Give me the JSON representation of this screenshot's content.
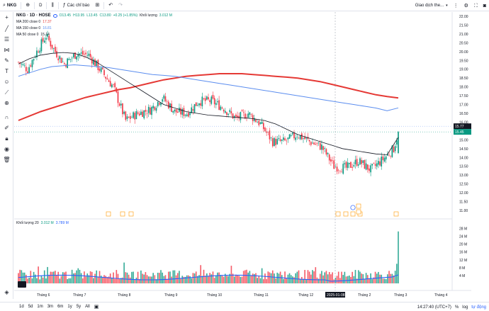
{
  "topbar": {
    "symbol": "NKG",
    "interval": "D",
    "indicators_label": "Các chỉ báo",
    "trading_label": "Giao dịch the..."
  },
  "legend": {
    "title": "NKG · 1D · HOSE",
    "o": "O13.45",
    "h": "H13.95",
    "l": "L13.45",
    "c": "C13.80",
    "change": "+0.25 (+1.85%)",
    "volume_label": "Khối lượng",
    "volume_value": "3.012 M",
    "ma_rows": [
      {
        "name": "MA 200 close 0",
        "value": "17.37",
        "color": "#e53935"
      },
      {
        "name": "MA 150 close 0",
        "value": "16.81",
        "color": "#5b8def"
      },
      {
        "name": "MA 50 close 0",
        "value": "15.14",
        "color": "#131722"
      }
    ]
  },
  "volume_legend": {
    "name": "Khối lượng 20",
    "v1": "3.012 M",
    "v2": "3.789 M"
  },
  "price_axis": {
    "labels": [
      "22.00",
      "21.50",
      "21.00",
      "20.50",
      "20.00",
      "19.50",
      "19.00",
      "18.50",
      "18.00",
      "17.50",
      "17.00",
      "16.50",
      "16.00",
      "15.50",
      "15.00",
      "14.50",
      "14.00",
      "13.50",
      "13.00",
      "12.50",
      "12.00",
      "11.50",
      "11.00"
    ],
    "last_price_badge": "15.45",
    "ma_badge": "15.77"
  },
  "volume_axis": {
    "labels": [
      "28 M",
      "24 M",
      "20 M",
      "16 M",
      "12 M",
      "8 M",
      "4 M"
    ]
  },
  "time_axis": {
    "labels": [
      "Tháng 6",
      "Tháng 7",
      "Tháng 8",
      "Tháng 9",
      "Tháng 10",
      "Tháng 11",
      "Tháng 12",
      "2025",
      "Tháng 2",
      "Tháng 3",
      "Tháng 4"
    ],
    "crosshair_date": "2025-01-08"
  },
  "bottombar": {
    "ranges": [
      "1d",
      "5d",
      "1m",
      "3m",
      "6m",
      "1y",
      "5y",
      "All"
    ],
    "time": "14:27:40 (UTC+7)",
    "percent": "%",
    "log": "log",
    "auto": "tự động"
  },
  "colors": {
    "up": "#089981",
    "down": "#f23645",
    "ma200": "#e53935",
    "ma150": "#5b8def",
    "ma50": "#131722",
    "vol_ma": "#2962ff"
  },
  "chart_data": {
    "type": "candlestick",
    "series": [
      {
        "name": "MA 200 close 0",
        "values": [
          16.1,
          16.35,
          16.6,
          16.8,
          17.0,
          17.2,
          17.4,
          17.55,
          17.7,
          17.85,
          17.95,
          18.1,
          18.25,
          18.4,
          18.5,
          18.6,
          18.65,
          18.7,
          18.75,
          18.75,
          18.75,
          18.7,
          18.65,
          18.6,
          18.55,
          18.5,
          18.4,
          18.3,
          18.15,
          18.0,
          17.85,
          17.7,
          17.55,
          17.45,
          17.37
        ]
      },
      {
        "name": "MA 150 close 0",
        "values": [
          18.6,
          18.8,
          19.0,
          19.15,
          19.2,
          19.25,
          19.2,
          19.15,
          19.1,
          19.0,
          18.9,
          18.8,
          18.7,
          18.65,
          18.6,
          18.5,
          18.4,
          18.3,
          18.2,
          18.1,
          18.0,
          17.9,
          17.8,
          17.7,
          17.6,
          17.5,
          17.4,
          17.3,
          17.2,
          17.1,
          17.0,
          16.9,
          16.8,
          16.65,
          16.81
        ]
      },
      {
        "name": "MA 50 close 0",
        "values": [
          19.3,
          19.6,
          19.8,
          19.9,
          19.95,
          19.9,
          19.7,
          19.4,
          19.0,
          18.6,
          18.2,
          17.8,
          17.4,
          17.0,
          16.8,
          16.6,
          16.5,
          16.4,
          16.35,
          16.3,
          16.25,
          16.2,
          16.1,
          15.9,
          15.6,
          15.3,
          15.1,
          14.9,
          14.7,
          14.5,
          14.4,
          14.3,
          14.2,
          14.15,
          15.14
        ]
      }
    ],
    "ylim": [
      11.0,
      22.0
    ],
    "last_close": 15.45
  }
}
